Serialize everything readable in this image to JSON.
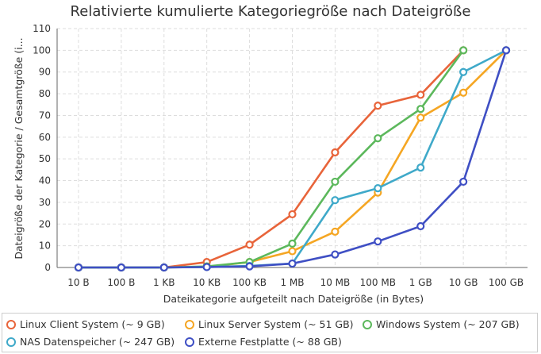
{
  "chart_data": {
    "type": "line",
    "title": "Relativierte kumulierte Kategoriegröße nach Dateigröße",
    "xlabel": "Dateikategorie aufgeteilt nach Dateigröße (in Bytes)",
    "ylabel": "Dateigröße der Kategorie / Gesamtgröße (i...",
    "ylim": [
      0,
      110
    ],
    "yticks": [
      0,
      10,
      20,
      30,
      40,
      50,
      60,
      70,
      80,
      90,
      100,
      110
    ],
    "grid": true,
    "legend_position": "bottom",
    "categories": [
      "10 B",
      "100 B",
      "1 KB",
      "10 KB",
      "100 KB",
      "1 MB",
      "10 MB",
      "100 MB",
      "1 GB",
      "10 GB",
      "100 GB"
    ],
    "series": [
      {
        "name": "Linux Client System (~ 9 GB)",
        "color": "#e8643a",
        "values": [
          0,
          0,
          0,
          2.5,
          10.5,
          24.5,
          53,
          74.5,
          79.5,
          100,
          null
        ]
      },
      {
        "name": "Linux Server System (~ 51 GB)",
        "color": "#f5a623",
        "values": [
          0,
          0,
          0,
          0.3,
          2.5,
          7.5,
          16.5,
          34.5,
          69,
          80.5,
          100
        ]
      },
      {
        "name": "Windows System (~ 207 GB)",
        "color": "#5cb85c",
        "values": [
          0,
          0,
          0,
          0.5,
          2.5,
          11,
          39.5,
          59.5,
          73,
          100,
          null
        ]
      },
      {
        "name": "NAS Datenspeicher (~ 247 GB)",
        "color": "#3fa9c9",
        "values": [
          0,
          0,
          0,
          0.2,
          0.7,
          1.8,
          31,
          36.5,
          46,
          90,
          100
        ]
      },
      {
        "name": "Externe Festplatte (~ 88 GB)",
        "color": "#3f4fc4",
        "values": [
          0,
          0,
          0,
          0.2,
          0.5,
          1.8,
          6,
          12,
          19,
          39.5,
          100
        ]
      }
    ]
  }
}
